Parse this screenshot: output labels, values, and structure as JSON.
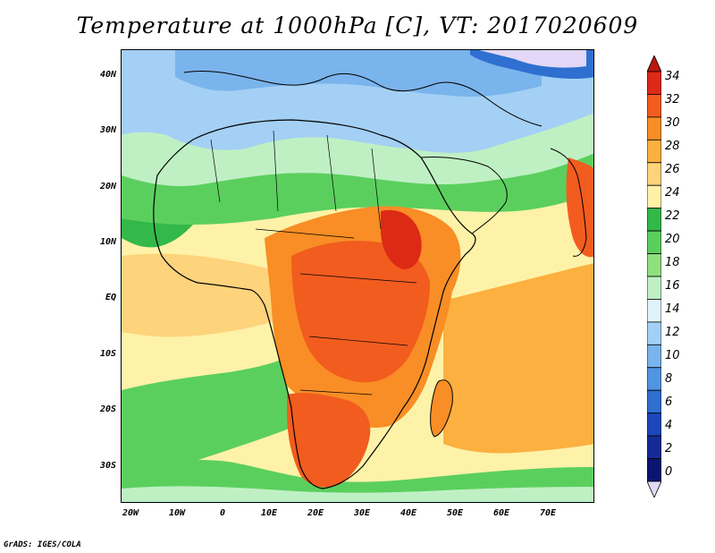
{
  "title": "Temperature at 1000hPa [C], VT: 2017020609",
  "credit": "GrADS: IGES/COLA",
  "lat_labels": [
    "40N",
    "30N",
    "20N",
    "10N",
    "EQ",
    "10S",
    "20S",
    "30S"
  ],
  "lon_labels": [
    "20W",
    "10W",
    "0",
    "10E",
    "20E",
    "30E",
    "40E",
    "50E",
    "60E",
    "70E"
  ],
  "colorbar": {
    "levels": [
      "34",
      "32",
      "30",
      "28",
      "26",
      "24",
      "22",
      "20",
      "18",
      "16",
      "14",
      "12",
      "10",
      "8",
      "6",
      "4",
      "2",
      "0"
    ],
    "colors": [
      "#dd2a16",
      "#f25c1f",
      "#f88e25",
      "#fbb040",
      "#fdd37c",
      "#fef2a8",
      "#33b84a",
      "#5bcf5e",
      "#8fe07f",
      "#bff0c4",
      "#dff3fa",
      "#a3d0f4",
      "#7ab4ec",
      "#5095e0",
      "#2e6fd0",
      "#1d47b8",
      "#142b96",
      "#0b1570"
    ],
    "over_color": "#b81810",
    "under_color": "#e3d8f7"
  }
}
